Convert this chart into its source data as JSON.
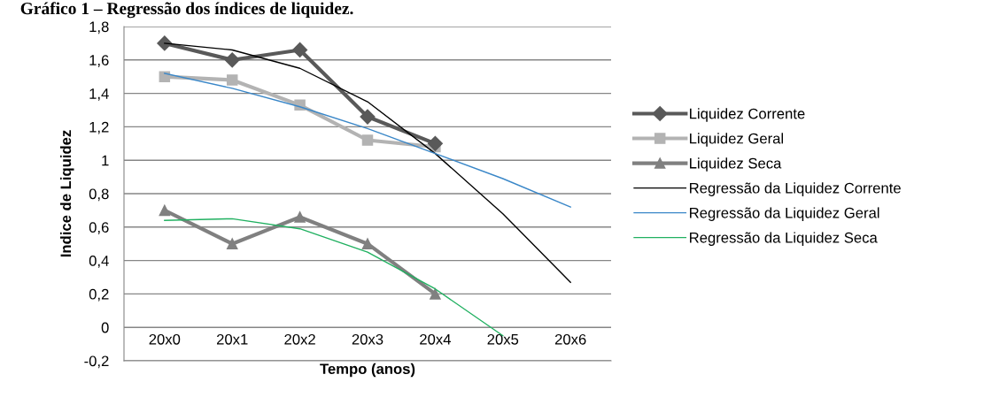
{
  "chart_data": {
    "type": "line",
    "title": "Gráfico 1 – Regressão dos índices de liquidez.",
    "xlabel": "Tempo (anos)",
    "ylabel": "Indice de Liquidez",
    "categories": [
      "20x0",
      "20x1",
      "20x2",
      "20x3",
      "20x4",
      "20x5",
      "20x6"
    ],
    "series": [
      {
        "name": "Liquidez Corrente",
        "color": "#595959",
        "marker": "diamond",
        "values": [
          1.7,
          1.6,
          1.66,
          1.26,
          1.1,
          null,
          null
        ]
      },
      {
        "name": "Liquidez Geral",
        "color": "#b3b3b3",
        "marker": "square",
        "values": [
          1.5,
          1.48,
          1.33,
          1.12,
          1.08,
          null,
          null
        ]
      },
      {
        "name": "Liquidez Seca",
        "color": "#808080",
        "marker": "triangle",
        "values": [
          0.7,
          0.5,
          0.66,
          0.5,
          0.2,
          null,
          null
        ]
      },
      {
        "name": "Regressão da Liquidez Corrente",
        "color": "#000000",
        "marker": "none",
        "values": [
          1.7,
          1.66,
          1.55,
          1.35,
          1.04,
          0.68,
          0.27
        ]
      },
      {
        "name": "Regressão da Liquidez Geral",
        "color": "#3a87c8",
        "marker": "none",
        "values": [
          1.52,
          1.43,
          1.32,
          1.19,
          1.04,
          0.89,
          0.72
        ]
      },
      {
        "name": "Regressão da Liquidez Seca",
        "color": "#20b060",
        "marker": "none",
        "values": [
          0.64,
          0.65,
          0.59,
          0.45,
          0.23,
          -0.05,
          null
        ]
      }
    ],
    "ylim": [
      -0.2,
      1.8
    ],
    "yticks": [
      {
        "value": -0.2,
        "label": "-0,2"
      },
      0,
      {
        "value": 0.2,
        "label": "0,2"
      },
      {
        "value": 0.4,
        "label": "0,4"
      },
      {
        "value": 0.6,
        "label": "0,6"
      },
      {
        "value": 0.8,
        "label": "0,8"
      },
      1,
      {
        "value": 1.2,
        "label": "1,2"
      },
      {
        "value": 1.4,
        "label": "1,4"
      },
      {
        "value": 1.6,
        "label": "1,6"
      },
      {
        "value": 1.8,
        "label": "1,8"
      }
    ],
    "grid": "y",
    "legend": "right"
  }
}
